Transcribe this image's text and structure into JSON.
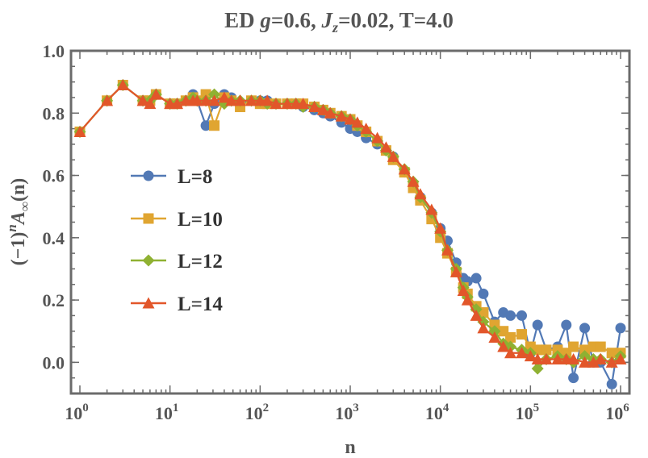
{
  "chart_data": {
    "type": "line",
    "title": {
      "prefix": "ED ",
      "g_sym": "g",
      "g_val": "=0.6, ",
      "j_sym": "J",
      "j_sub": "z",
      "j_val": "=0.02, T=4.0"
    },
    "xlabel": "n",
    "ylabel": {
      "part1": "(−1)",
      "sup": "n",
      "part2": "A",
      "sub": "∞",
      "part3": "(n)"
    },
    "xscale": "log",
    "xlim": [
      1,
      1000000
    ],
    "ylim": [
      -0.1,
      1.0
    ],
    "xticks": [
      {
        "base": "10",
        "exp": "0",
        "value": 1
      },
      {
        "base": "10",
        "exp": "1",
        "value": 10
      },
      {
        "base": "10",
        "exp": "2",
        "value": 100
      },
      {
        "base": "10",
        "exp": "3",
        "value": 1000
      },
      {
        "base": "10",
        "exp": "4",
        "value": 10000
      },
      {
        "base": "10",
        "exp": "5",
        "value": 100000
      },
      {
        "base": "10",
        "exp": "6",
        "value": 1000000
      }
    ],
    "yticks": [
      "0.0",
      "0.2",
      "0.4",
      "0.6",
      "0.8",
      "1.0"
    ],
    "legend_position": "left-middle",
    "series": [
      {
        "name": "L=8",
        "color": "#5279b5",
        "marker": "circle",
        "x": [
          1,
          2,
          3,
          5,
          6,
          7,
          10,
          12,
          15,
          18,
          20,
          25,
          31,
          40,
          48,
          60,
          80,
          100,
          120,
          150,
          200,
          250,
          300,
          400,
          500,
          600,
          800,
          1000,
          1200,
          1500,
          2000,
          2500,
          3000,
          4000,
          5000,
          6000,
          8000,
          10000,
          12000,
          15000,
          18000,
          20000,
          25000,
          30000,
          40000,
          50000,
          60000,
          80000,
          100000,
          120000,
          150000,
          200000,
          250000,
          300000,
          400000,
          500000,
          600000,
          800000,
          1000000
        ],
        "y": [
          0.74,
          0.84,
          0.89,
          0.84,
          0.84,
          0.86,
          0.83,
          0.83,
          0.84,
          0.86,
          0.84,
          0.76,
          0.83,
          0.86,
          0.85,
          0.83,
          0.84,
          0.84,
          0.84,
          0.83,
          0.83,
          0.83,
          0.82,
          0.81,
          0.8,
          0.79,
          0.77,
          0.75,
          0.74,
          0.72,
          0.7,
          0.68,
          0.66,
          0.61,
          0.57,
          0.53,
          0.48,
          0.43,
          0.39,
          0.32,
          0.27,
          0.26,
          0.27,
          0.22,
          0.13,
          0.16,
          0.15,
          0.15,
          0.03,
          0.12,
          0.04,
          0.05,
          0.12,
          -0.05,
          0.11,
          0.0,
          0.0,
          -0.07,
          0.11
        ]
      },
      {
        "name": "L=10",
        "color": "#e0a531",
        "marker": "square",
        "x": [
          1,
          2,
          3,
          5,
          6,
          7,
          10,
          12,
          15,
          18,
          20,
          25,
          31,
          40,
          48,
          60,
          80,
          100,
          120,
          150,
          200,
          250,
          300,
          400,
          500,
          600,
          800,
          1000,
          1200,
          1500,
          2000,
          2500,
          3000,
          4000,
          5000,
          6000,
          8000,
          10000,
          12000,
          15000,
          18000,
          20000,
          25000,
          30000,
          40000,
          50000,
          60000,
          80000,
          100000,
          120000,
          150000,
          200000,
          250000,
          300000,
          400000,
          500000,
          600000,
          800000,
          1000000
        ],
        "y": [
          0.74,
          0.84,
          0.89,
          0.84,
          0.84,
          0.86,
          0.83,
          0.83,
          0.84,
          0.85,
          0.84,
          0.86,
          0.76,
          0.85,
          0.84,
          0.82,
          0.84,
          0.83,
          0.83,
          0.83,
          0.83,
          0.83,
          0.83,
          0.82,
          0.81,
          0.8,
          0.79,
          0.78,
          0.76,
          0.74,
          0.71,
          0.68,
          0.65,
          0.61,
          0.56,
          0.52,
          0.46,
          0.4,
          0.35,
          0.29,
          0.24,
          0.22,
          0.18,
          0.16,
          0.12,
          0.1,
          0.08,
          0.09,
          0.05,
          0.04,
          0.04,
          0.04,
          0.03,
          0.05,
          0.04,
          0.05,
          0.05,
          0.03,
          0.03
        ]
      },
      {
        "name": "L=12",
        "color": "#8fb132",
        "marker": "diamond",
        "x": [
          1,
          2,
          3,
          5,
          6,
          7,
          10,
          12,
          15,
          18,
          20,
          25,
          31,
          40,
          48,
          60,
          80,
          100,
          120,
          150,
          200,
          250,
          300,
          400,
          500,
          600,
          800,
          1000,
          1200,
          1500,
          2000,
          2500,
          3000,
          4000,
          5000,
          6000,
          8000,
          10000,
          12000,
          15000,
          18000,
          20000,
          25000,
          30000,
          40000,
          50000,
          60000,
          80000,
          100000,
          120000,
          150000,
          200000,
          250000,
          300000,
          400000,
          500000,
          600000,
          800000,
          1000000
        ],
        "y": [
          0.74,
          0.84,
          0.89,
          0.84,
          0.84,
          0.86,
          0.83,
          0.83,
          0.84,
          0.85,
          0.84,
          0.84,
          0.86,
          0.83,
          0.84,
          0.84,
          0.84,
          0.84,
          0.83,
          0.83,
          0.83,
          0.83,
          0.82,
          0.82,
          0.81,
          0.8,
          0.79,
          0.78,
          0.76,
          0.74,
          0.71,
          0.68,
          0.66,
          0.62,
          0.58,
          0.53,
          0.48,
          0.42,
          0.36,
          0.3,
          0.24,
          0.21,
          0.17,
          0.13,
          0.1,
          0.06,
          0.05,
          0.04,
          0.03,
          -0.02,
          0.01,
          0.02,
          0.01,
          0.0,
          0.02,
          0.01,
          0.01,
          0.0,
          0.02
        ]
      },
      {
        "name": "L=14",
        "color": "#e2562a",
        "marker": "triangle",
        "x": [
          1,
          2,
          3,
          5,
          6,
          7,
          10,
          12,
          15,
          18,
          20,
          25,
          31,
          40,
          48,
          60,
          80,
          100,
          120,
          150,
          200,
          250,
          300,
          400,
          500,
          600,
          800,
          1000,
          1200,
          1500,
          2000,
          2500,
          3000,
          4000,
          5000,
          6000,
          8000,
          10000,
          12000,
          15000,
          18000,
          20000,
          25000,
          30000,
          40000,
          50000,
          60000,
          80000,
          100000,
          120000,
          150000,
          200000,
          250000,
          300000,
          400000,
          500000,
          600000,
          800000,
          1000000
        ],
        "y": [
          0.74,
          0.84,
          0.89,
          0.84,
          0.83,
          0.86,
          0.83,
          0.83,
          0.84,
          0.84,
          0.84,
          0.84,
          0.84,
          0.85,
          0.84,
          0.84,
          0.84,
          0.84,
          0.84,
          0.83,
          0.83,
          0.83,
          0.83,
          0.82,
          0.81,
          0.8,
          0.79,
          0.78,
          0.77,
          0.75,
          0.72,
          0.69,
          0.66,
          0.62,
          0.58,
          0.54,
          0.49,
          0.43,
          0.36,
          0.29,
          0.23,
          0.2,
          0.15,
          0.11,
          0.08,
          0.05,
          0.03,
          0.03,
          0.02,
          0.01,
          0.01,
          0.01,
          0.01,
          0.01,
          0.0,
          0.0,
          0.01,
          0.0,
          0.01
        ]
      }
    ]
  }
}
